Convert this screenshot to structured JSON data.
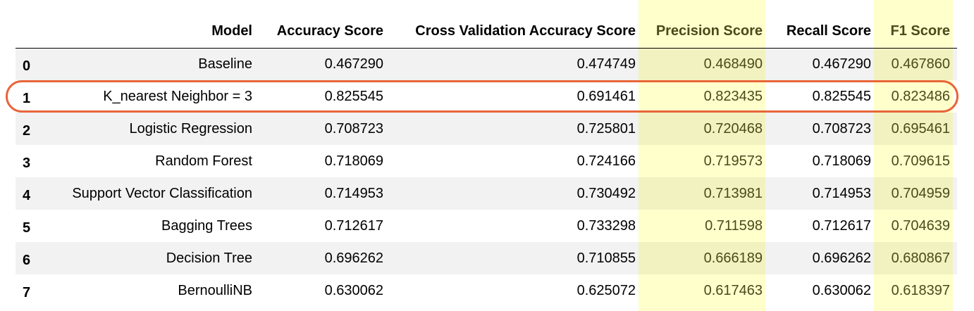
{
  "table": {
    "columns": [
      "",
      "Model",
      "Accuracy Score",
      "Cross Validation Accuracy Score",
      "Precision Score",
      "Recall Score",
      "F1 Score"
    ],
    "rows": [
      [
        "0",
        "Baseline",
        "0.467290",
        "0.474749",
        "0.468490",
        "0.467290",
        "0.467860"
      ],
      [
        "1",
        "K_nearest Neighbor = 3",
        "0.825545",
        "0.691461",
        "0.823435",
        "0.825545",
        "0.823486"
      ],
      [
        "2",
        "Logistic Regression",
        "0.708723",
        "0.725801",
        "0.720468",
        "0.708723",
        "0.695461"
      ],
      [
        "3",
        "Random Forest",
        "0.718069",
        "0.724166",
        "0.719573",
        "0.718069",
        "0.709615"
      ],
      [
        "4",
        "Support Vector Classification",
        "0.714953",
        "0.730492",
        "0.713981",
        "0.714953",
        "0.704959"
      ],
      [
        "5",
        "Bagging Trees",
        "0.712617",
        "0.733298",
        "0.711598",
        "0.712617",
        "0.704639"
      ],
      [
        "6",
        "Decision Tree",
        "0.696262",
        "0.710855",
        "0.666189",
        "0.696262",
        "0.680867"
      ],
      [
        "7",
        "BernoulliNB",
        "0.630062",
        "0.625072",
        "0.617463",
        "0.630062",
        "0.618397"
      ]
    ]
  },
  "style": {
    "highlight_color": "#ffffcc",
    "ring_color": "#e8653a",
    "highlighted_columns": [
      "Precision Score",
      "F1 Score"
    ],
    "circled_row_index": "1"
  }
}
